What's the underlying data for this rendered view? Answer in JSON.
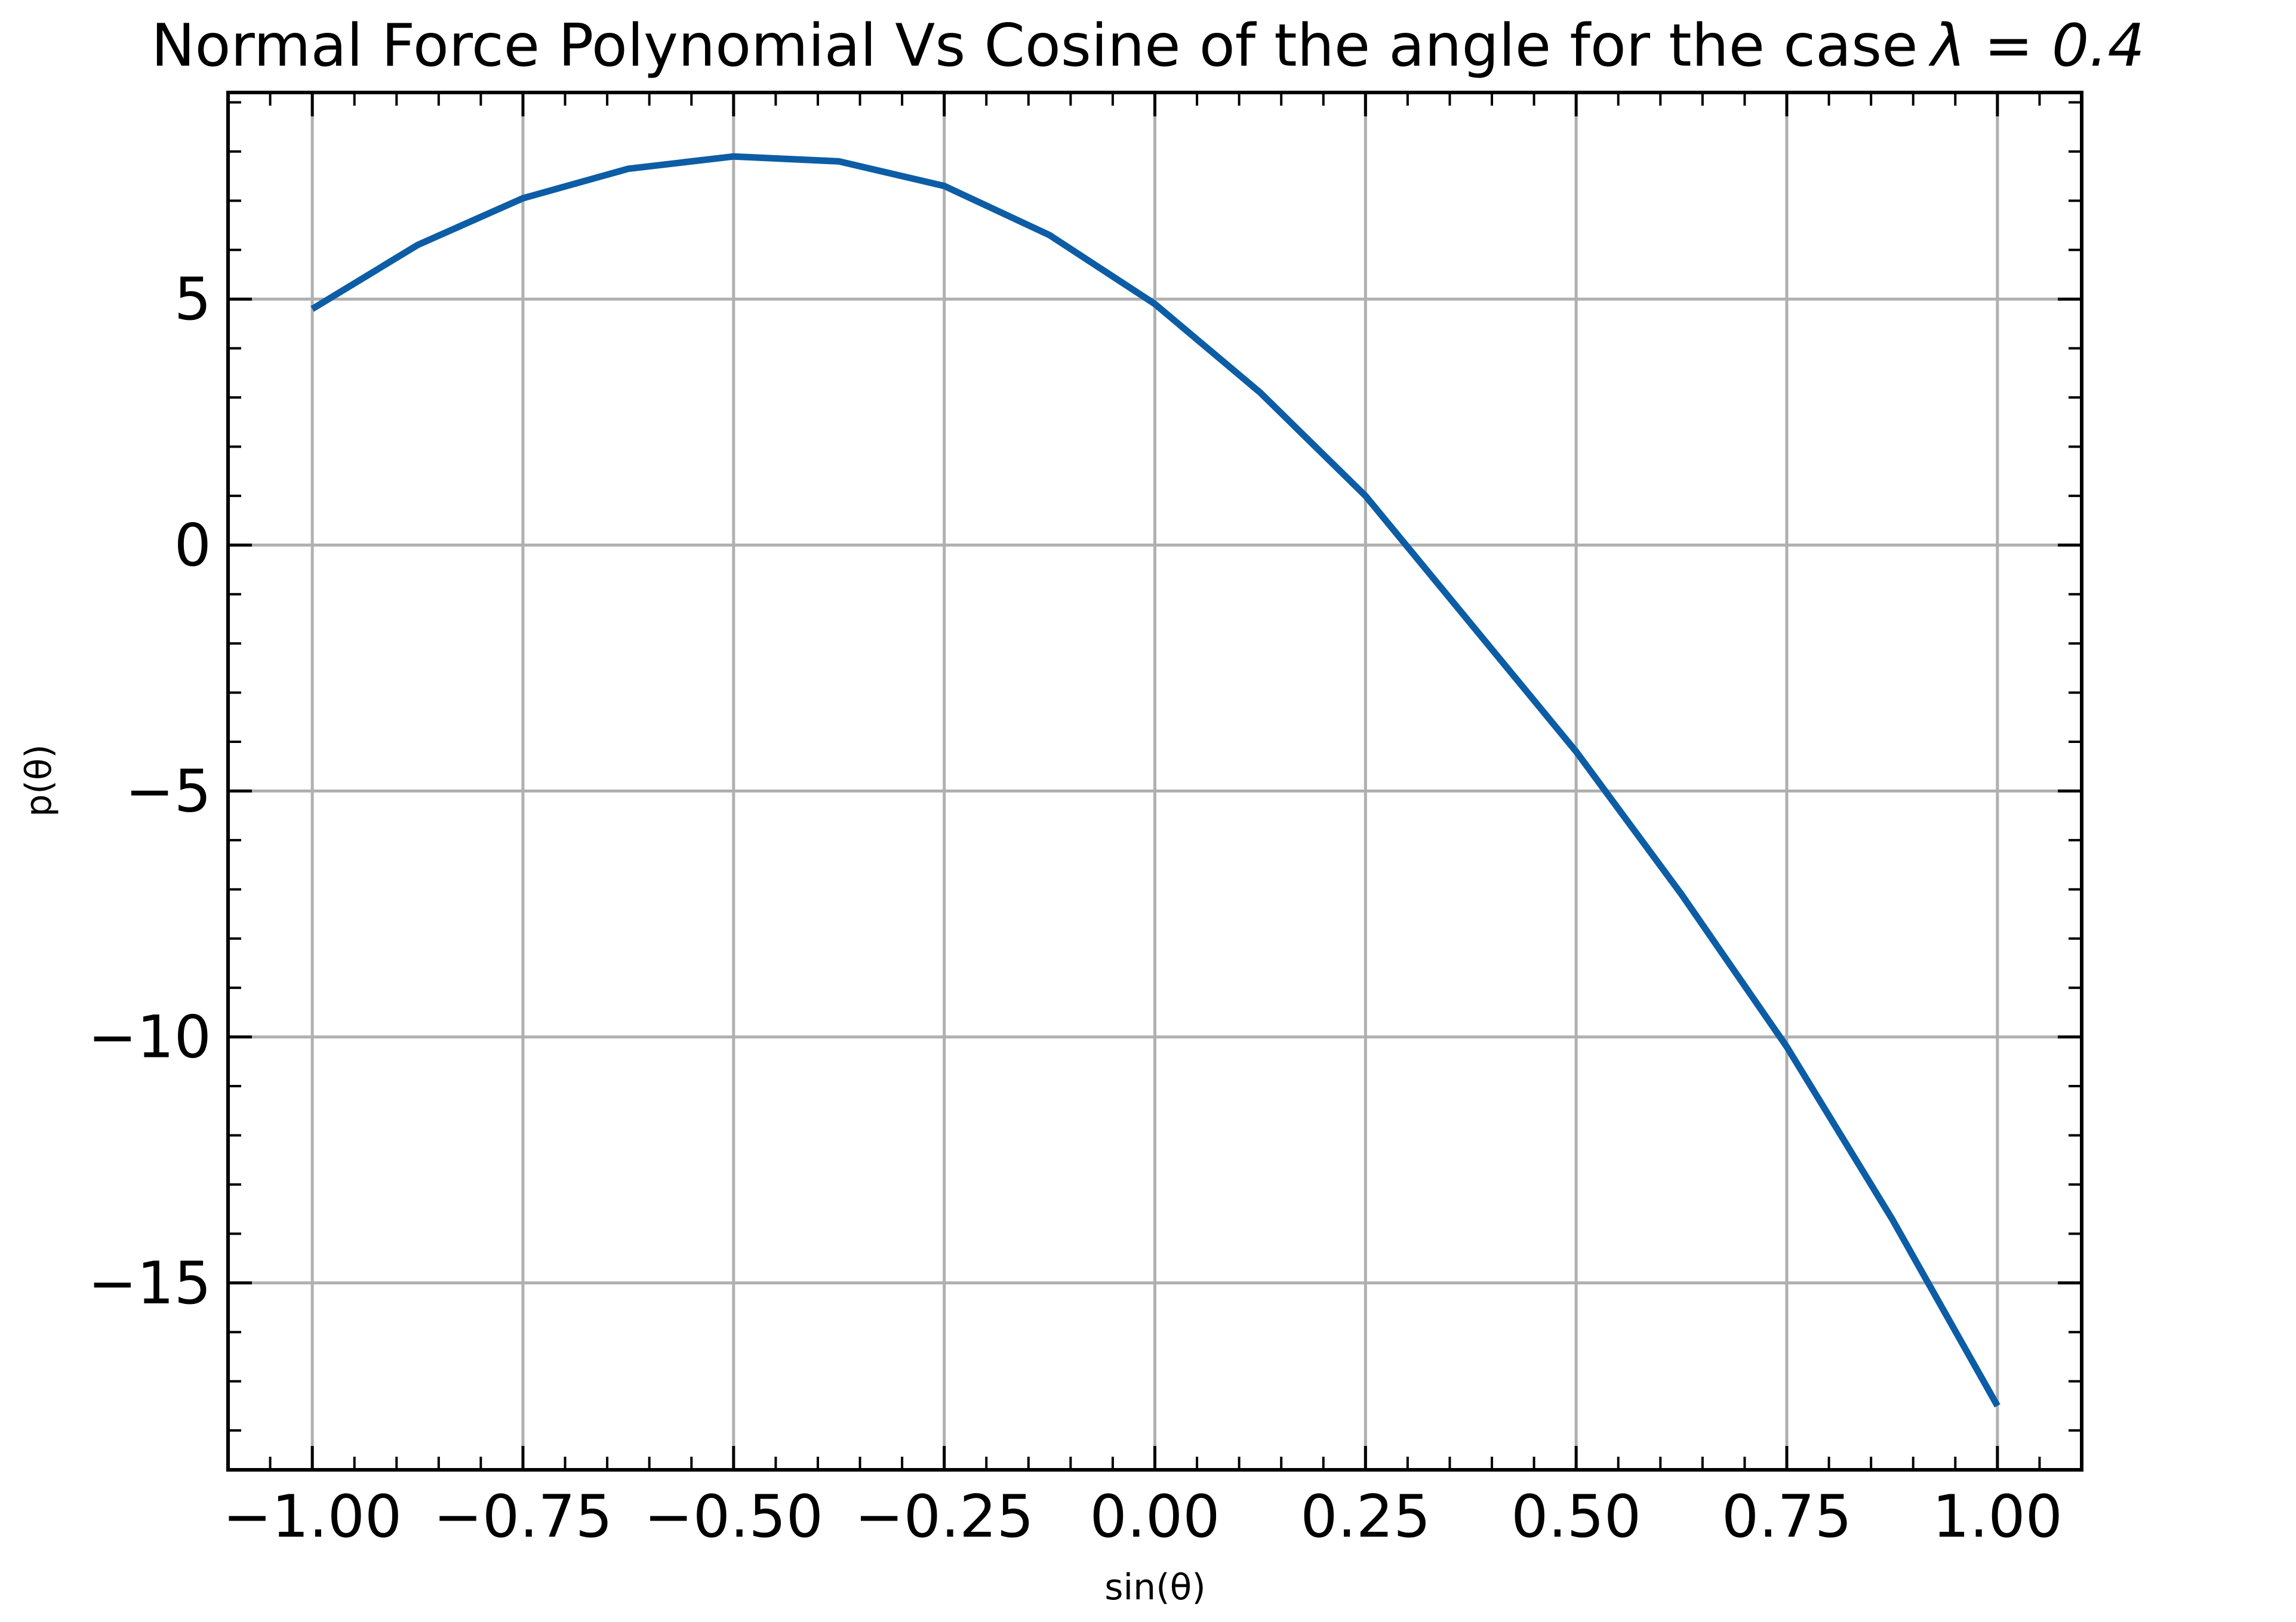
{
  "chart_data": {
    "type": "line",
    "title": "Normal Force Polynomial Vs Cosine of the angle for the case",
    "title_math": "λ = 0.4",
    "xlabel": "sin(θ)",
    "ylabel": "p(θ)",
    "xlim": [
      -1.1,
      1.1
    ],
    "ylim": [
      -18.8,
      9.2
    ],
    "x_ticks": [
      -1.0,
      -0.75,
      -0.5,
      -0.25,
      0.0,
      0.25,
      0.5,
      0.75,
      1.0
    ],
    "x_tick_labels": [
      "−1.00",
      "−0.75",
      "−0.50",
      "−0.25",
      "0.00",
      "0.25",
      "0.50",
      "0.75",
      "1.00"
    ],
    "y_ticks": [
      -15,
      -10,
      -5,
      0,
      5
    ],
    "y_tick_labels": [
      "−15",
      "−10",
      "−5",
      "0",
      "5"
    ],
    "grid": true,
    "legend": "none",
    "series": [
      {
        "color": "#0c5da5",
        "x": [
          -1.0,
          -0.875,
          -0.75,
          -0.625,
          -0.5,
          -0.375,
          -0.25,
          -0.125,
          0.0,
          0.125,
          0.25,
          0.375,
          0.5,
          0.625,
          0.75,
          0.875,
          1.0
        ],
        "y": [
          4.8,
          6.1,
          7.05,
          7.65,
          7.9,
          7.8,
          7.3,
          6.3,
          4.9,
          3.1,
          1.0,
          -1.6,
          -4.2,
          -7.1,
          -10.2,
          -13.7,
          -17.5
        ]
      }
    ]
  }
}
